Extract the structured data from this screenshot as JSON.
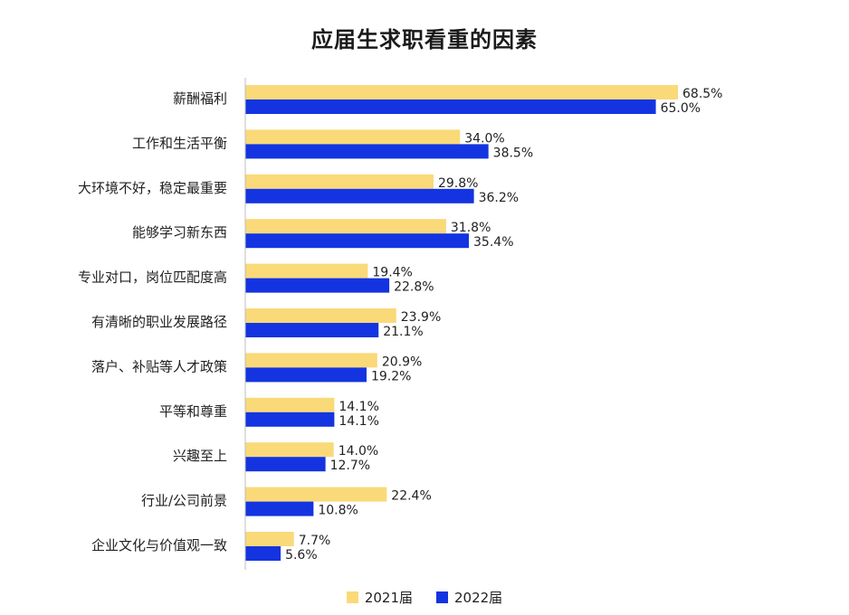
{
  "chart_data": {
    "type": "bar",
    "orientation": "horizontal",
    "title": "应届生求职看重的因素",
    "categories": [
      "薪酬福利",
      "工作和生活平衡",
      "大环境不好，稳定最重要",
      "能够学习新东西",
      "专业对口，岗位匹配度高",
      "有清晰的职业发展路径",
      "落户、补贴等人才政策",
      "平等和尊重",
      "兴趣至上",
      "行业/公司前景",
      "企业文化与价值观一致"
    ],
    "series": [
      {
        "name": "2021届",
        "color": "#FAD979",
        "values": [
          68.5,
          34.0,
          29.8,
          31.8,
          19.4,
          23.9,
          20.9,
          14.1,
          14.0,
          22.4,
          7.7
        ],
        "labels": [
          "68.5%",
          "34.0%",
          "29.8%",
          "31.8%",
          "19.4%",
          "23.9%",
          "20.9%",
          "14.1%",
          "14.0%",
          "22.4%",
          "7.7%"
        ]
      },
      {
        "name": "2022届",
        "color": "#1334E0",
        "values": [
          65.0,
          38.5,
          36.2,
          35.4,
          22.8,
          21.1,
          19.2,
          14.1,
          12.7,
          10.8,
          5.6
        ],
        "labels": [
          "65.0%",
          "38.5%",
          "36.2%",
          "35.4%",
          "22.8%",
          "21.1%",
          "19.2%",
          "14.1%",
          "12.7%",
          "10.8%",
          "5.6%"
        ]
      }
    ],
    "xlim": [
      0,
      68.5
    ],
    "grid": false,
    "legend_position": "bottom-center"
  }
}
